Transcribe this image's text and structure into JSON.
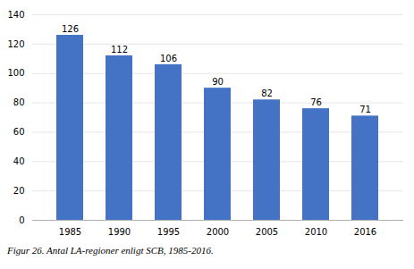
{
  "chart_data": {
    "type": "bar",
    "categories": [
      "1985",
      "1990",
      "1995",
      "2000",
      "2005",
      "2010",
      "2016"
    ],
    "values": [
      126,
      112,
      106,
      90,
      82,
      76,
      71
    ],
    "color": "#4472c4",
    "ylim": [
      0,
      140
    ],
    "yticks": [
      0,
      20,
      40,
      60,
      80,
      100,
      120,
      140
    ],
    "grid": true,
    "data_labels": true,
    "caption": "Figur 26. Antal LA-regioner enligt SCB, 1985-2016."
  }
}
